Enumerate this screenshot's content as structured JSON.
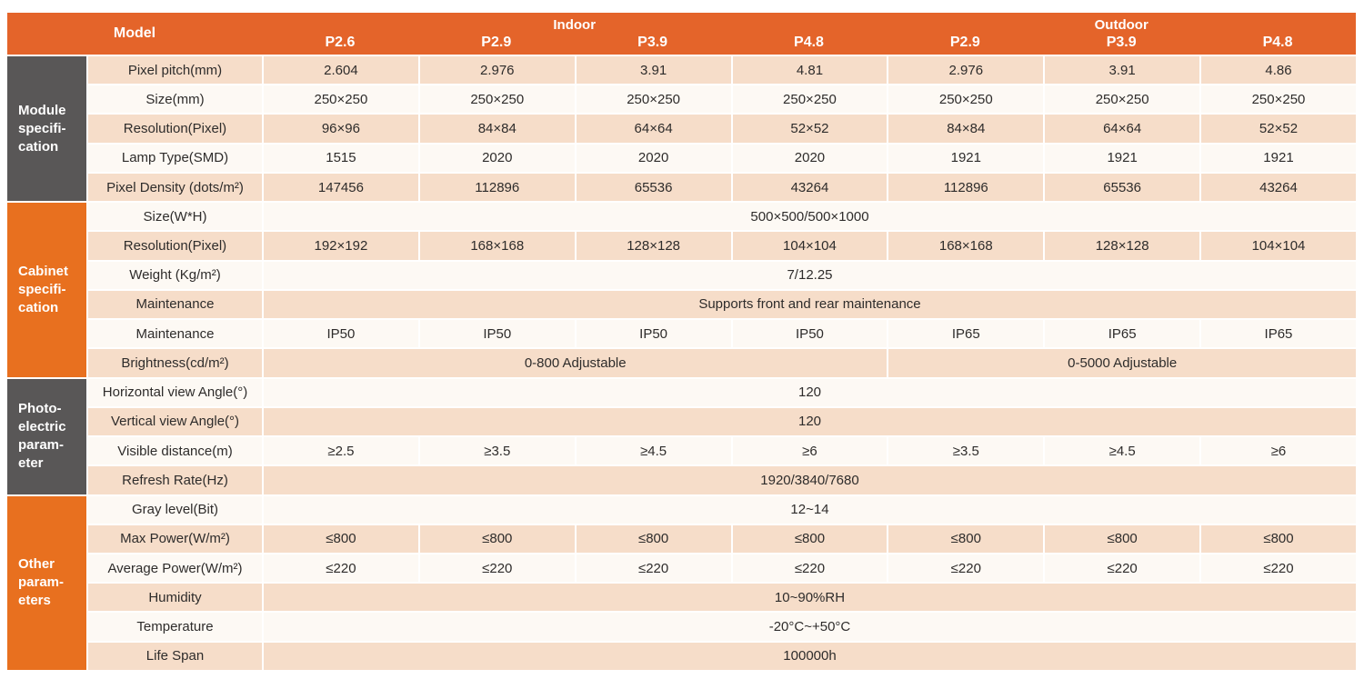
{
  "palette": {
    "header_orange": "#e4642a",
    "section_orange": "#e8701f",
    "section_gray": "#595757",
    "row_pink": "#f6ddc9",
    "row_cream": "#fdf9f4",
    "header_text": "#ffffff",
    "body_text": "#2e2c2b"
  },
  "table": {
    "header": {
      "model_label": "Model",
      "groups": [
        {
          "label": "Indoor",
          "span": 4
        },
        {
          "label": "Outdoor",
          "span": 3
        }
      ],
      "columns": [
        "P2.6",
        "P2.9",
        "P3.9",
        "P4.8",
        "P2.9",
        "P3.9",
        "P4.8"
      ]
    },
    "sections": [
      {
        "name": "module-specification",
        "lines": [
          "Module",
          "specifi-",
          "cation"
        ],
        "variant": "gray",
        "row_start": 0,
        "row_count": 5
      },
      {
        "name": "cabinet-specification",
        "lines": [
          "Cabinet",
          "specifi-",
          "cation"
        ],
        "variant": "orange",
        "row_start": 5,
        "row_count": 6
      },
      {
        "name": "photoelectric-parameter",
        "lines": [
          "Photo-",
          "electric",
          "param-",
          "eter"
        ],
        "variant": "gray",
        "row_start": 11,
        "row_count": 4
      },
      {
        "name": "other-parameters",
        "lines": [
          "Other",
          "param-",
          "eters"
        ],
        "variant": "orange",
        "row_start": 15,
        "row_count": 6
      }
    ],
    "rows": [
      {
        "label": "Pixel pitch(mm)",
        "cells": [
          {
            "text": "2.604",
            "span": 1
          },
          {
            "text": "2.976",
            "span": 1
          },
          {
            "text": "3.91",
            "span": 1
          },
          {
            "text": "4.81",
            "span": 1
          },
          {
            "text": "2.976",
            "span": 1
          },
          {
            "text": "3.91",
            "span": 1
          },
          {
            "text": "4.86",
            "span": 1
          }
        ]
      },
      {
        "label": "Size(mm)",
        "cells": [
          {
            "text": "250×250",
            "span": 1
          },
          {
            "text": "250×250",
            "span": 1
          },
          {
            "text": "250×250",
            "span": 1
          },
          {
            "text": "250×250",
            "span": 1
          },
          {
            "text": "250×250",
            "span": 1
          },
          {
            "text": "250×250",
            "span": 1
          },
          {
            "text": "250×250",
            "span": 1
          }
        ]
      },
      {
        "label": "Resolution(Pixel)",
        "cells": [
          {
            "text": "96×96",
            "span": 1
          },
          {
            "text": "84×84",
            "span": 1
          },
          {
            "text": "64×64",
            "span": 1
          },
          {
            "text": "52×52",
            "span": 1
          },
          {
            "text": "84×84",
            "span": 1
          },
          {
            "text": "64×64",
            "span": 1
          },
          {
            "text": "52×52",
            "span": 1
          }
        ]
      },
      {
        "label": "Lamp Type(SMD)",
        "cells": [
          {
            "text": "1515",
            "span": 1
          },
          {
            "text": "2020",
            "span": 1
          },
          {
            "text": "2020",
            "span": 1
          },
          {
            "text": "2020",
            "span": 1
          },
          {
            "text": "1921",
            "span": 1
          },
          {
            "text": "1921",
            "span": 1
          },
          {
            "text": "1921",
            "span": 1
          }
        ]
      },
      {
        "label": "Pixel Density  (dots/m²)",
        "cells": [
          {
            "text": "147456",
            "span": 1
          },
          {
            "text": "112896",
            "span": 1
          },
          {
            "text": "65536",
            "span": 1
          },
          {
            "text": "43264",
            "span": 1
          },
          {
            "text": "112896",
            "span": 1
          },
          {
            "text": "65536",
            "span": 1
          },
          {
            "text": "43264",
            "span": 1
          }
        ]
      },
      {
        "label": "Size(W*H)",
        "cells": [
          {
            "text": "500×500/500×1000",
            "span": 7
          }
        ]
      },
      {
        "label": "Resolution(Pixel)",
        "cells": [
          {
            "text": "192×192",
            "span": 1
          },
          {
            "text": "168×168",
            "span": 1
          },
          {
            "text": "128×128",
            "span": 1
          },
          {
            "text": "104×104",
            "span": 1
          },
          {
            "text": "168×168",
            "span": 1
          },
          {
            "text": "128×128",
            "span": 1
          },
          {
            "text": "104×104",
            "span": 1
          }
        ]
      },
      {
        "label": "Weight  (Kg/m²)",
        "cells": [
          {
            "text": "7/12.25",
            "span": 7
          }
        ]
      },
      {
        "label": "Maintenance",
        "cells": [
          {
            "text": "Supports front and rear maintenance",
            "span": 7
          }
        ]
      },
      {
        "label": "Maintenance",
        "cells": [
          {
            "text": "IP50",
            "span": 1
          },
          {
            "text": "IP50",
            "span": 1
          },
          {
            "text": "IP50",
            "span": 1
          },
          {
            "text": "IP50",
            "span": 1
          },
          {
            "text": "IP65",
            "span": 1
          },
          {
            "text": "IP65",
            "span": 1
          },
          {
            "text": "IP65",
            "span": 1
          }
        ]
      },
      {
        "label": "Brightness(cd/m²)",
        "cells": [
          {
            "text": "0-800 Adjustable",
            "span": 4
          },
          {
            "text": "0-5000 Adjustable",
            "span": 3
          }
        ]
      },
      {
        "label": "Horizontal view Angle(°)",
        "cells": [
          {
            "text": "120",
            "span": 7
          }
        ]
      },
      {
        "label": "Vertical view Angle(°)",
        "cells": [
          {
            "text": "120",
            "span": 7
          }
        ]
      },
      {
        "label": "Visible distance(m)",
        "cells": [
          {
            "text": "≥2.5",
            "span": 1
          },
          {
            "text": "≥3.5",
            "span": 1
          },
          {
            "text": "≥4.5",
            "span": 1
          },
          {
            "text": "≥6",
            "span": 1
          },
          {
            "text": "≥3.5",
            "span": 1
          },
          {
            "text": "≥4.5",
            "span": 1
          },
          {
            "text": "≥6",
            "span": 1
          }
        ]
      },
      {
        "label": "Refresh Rate(Hz)",
        "cells": [
          {
            "text": "1920/3840/7680",
            "span": 7
          }
        ]
      },
      {
        "label": "Gray level(Bit)",
        "cells": [
          {
            "text": "12~14",
            "span": 7
          }
        ]
      },
      {
        "label": "Max Power(W/m²)",
        "cells": [
          {
            "text": "≤800",
            "span": 1
          },
          {
            "text": "≤800",
            "span": 1
          },
          {
            "text": "≤800",
            "span": 1
          },
          {
            "text": "≤800",
            "span": 1
          },
          {
            "text": "≤800",
            "span": 1
          },
          {
            "text": "≤800",
            "span": 1
          },
          {
            "text": "≤800",
            "span": 1
          }
        ]
      },
      {
        "label": "Average Power(W/m²)",
        "cells": [
          {
            "text": "≤220",
            "span": 1
          },
          {
            "text": "≤220",
            "span": 1
          },
          {
            "text": "≤220",
            "span": 1
          },
          {
            "text": "≤220",
            "span": 1
          },
          {
            "text": "≤220",
            "span": 1
          },
          {
            "text": "≤220",
            "span": 1
          },
          {
            "text": "≤220",
            "span": 1
          }
        ]
      },
      {
        "label": "Humidity",
        "cells": [
          {
            "text": "10~90%RH",
            "span": 7
          }
        ]
      },
      {
        "label": "Temperature",
        "cells": [
          {
            "text": "-20°C~+50°C",
            "span": 7
          }
        ]
      },
      {
        "label": "Life Span",
        "cells": [
          {
            "text": "100000h",
            "span": 7
          }
        ]
      }
    ]
  }
}
